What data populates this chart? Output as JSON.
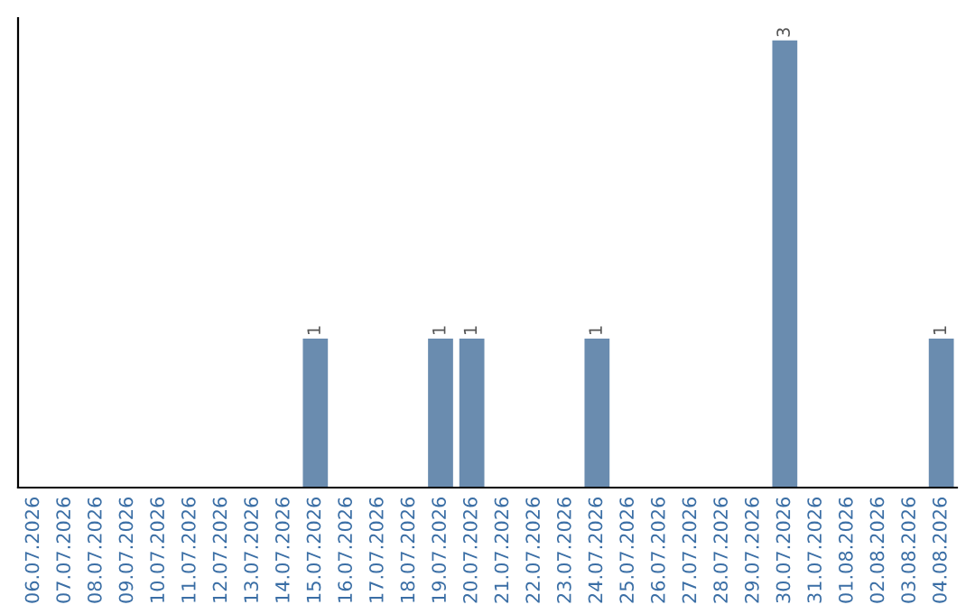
{
  "chart_data": {
    "type": "bar",
    "categories": [
      "06.07.2026",
      "07.07.2026",
      "08.07.2026",
      "09.07.2026",
      "10.07.2026",
      "11.07.2026",
      "12.07.2026",
      "13.07.2026",
      "14.07.2026",
      "15.07.2026",
      "16.07.2026",
      "17.07.2026",
      "18.07.2026",
      "19.07.2026",
      "20.07.2026",
      "21.07.2026",
      "22.07.2026",
      "23.07.2026",
      "24.07.2026",
      "25.07.2026",
      "26.07.2026",
      "27.07.2026",
      "28.07.2026",
      "29.07.2026",
      "30.07.2026",
      "31.07.2026",
      "01.08.2026",
      "02.08.2026",
      "03.08.2026",
      "04.08.2026"
    ],
    "values": [
      0,
      0,
      0,
      0,
      0,
      0,
      0,
      0,
      0,
      1,
      0,
      0,
      0,
      1,
      1,
      0,
      0,
      0,
      1,
      0,
      0,
      0,
      0,
      0,
      3,
      0,
      0,
      0,
      0,
      1
    ],
    "value_labels": [
      null,
      null,
      null,
      null,
      null,
      null,
      null,
      null,
      null,
      "1",
      null,
      null,
      null,
      "1",
      "1",
      null,
      null,
      null,
      "1",
      null,
      null,
      null,
      null,
      null,
      "3",
      null,
      null,
      null,
      null,
      "1"
    ],
    "color": "#6a8caf",
    "tick_labels": "x",
    "grid": false,
    "legend": false
  }
}
